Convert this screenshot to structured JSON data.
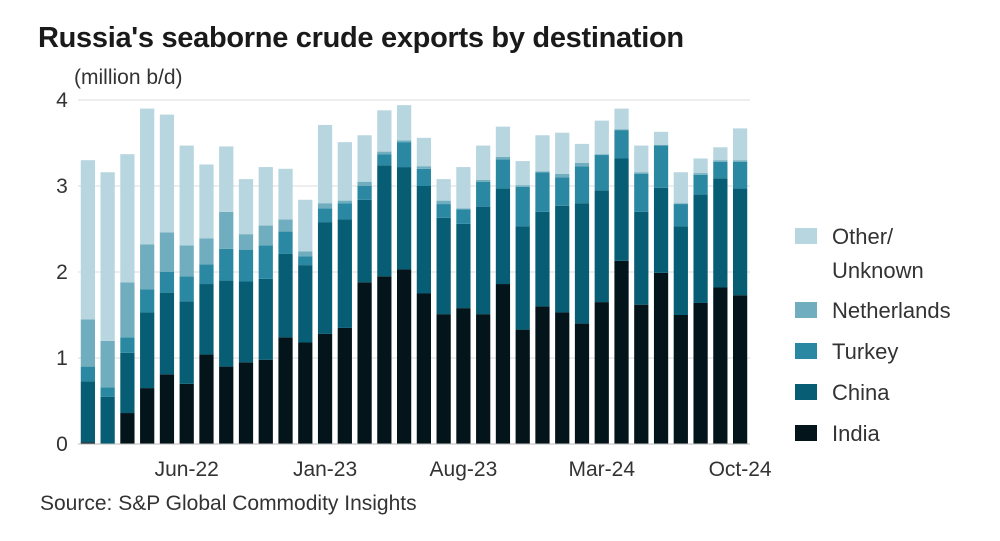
{
  "chart_data": {
    "type": "bar",
    "stacked": true,
    "title": "Russia's seaborne crude exports by destination",
    "ylabel": "(million b/d)",
    "xlabel": "",
    "ylim": [
      0,
      4
    ],
    "yticks": [
      "0",
      "1",
      "2",
      "3",
      "4"
    ],
    "grid": true,
    "legend_placement": "right",
    "source": "Source: S&P Global Commodity Insights",
    "categories": [
      "Jan-22",
      "Feb-22",
      "Mar-22",
      "Apr-22",
      "May-22",
      "Jun-22",
      "Jul-22",
      "Aug-22",
      "Sep-22",
      "Oct-22",
      "Nov-22",
      "Dec-22",
      "Jan-23",
      "Feb-23",
      "Mar-23",
      "Apr-23",
      "May-23",
      "Jun-23",
      "Jul-23",
      "Aug-23",
      "Sep-23",
      "Oct-23",
      "Nov-23",
      "Dec-23",
      "Jan-24",
      "Feb-24",
      "Mar-24",
      "Apr-24",
      "May-24",
      "Jun-24",
      "Jul-24",
      "Aug-24",
      "Sep-24",
      "Oct-24"
    ],
    "xtick_labels": [
      "Jun-22",
      "Jan-23",
      "Aug-23",
      "Mar-24",
      "Oct-24"
    ],
    "series": [
      {
        "name": "India",
        "color": "#03141b",
        "values": [
          0.02,
          0,
          0.36,
          0.65,
          0.81,
          0.7,
          1.04,
          0.9,
          0.95,
          0.98,
          1.24,
          1.18,
          1.28,
          1.35,
          1.88,
          1.95,
          2.03,
          1.75,
          1.51,
          1.58,
          1.51,
          1.86,
          1.33,
          1.6,
          1.53,
          1.4,
          1.65,
          2.13,
          1.62,
          1.99,
          1.5,
          1.64,
          1.82,
          1.73
        ]
      },
      {
        "name": "China",
        "color": "#065d74",
        "values": [
          0.71,
          0.55,
          0.7,
          0.88,
          0.95,
          0.96,
          0.82,
          1.0,
          0.94,
          0.94,
          0.97,
          0.9,
          1.3,
          1.26,
          0.96,
          1.29,
          1.19,
          1.25,
          1.12,
          0.98,
          1.25,
          1.11,
          1.2,
          1.1,
          1.24,
          1.4,
          1.3,
          1.19,
          1.08,
          0.99,
          1.03,
          1.26,
          1.27,
          1.24
        ]
      },
      {
        "name": "Turkey",
        "color": "#2a88a2",
        "values": [
          0.17,
          0.11,
          0.18,
          0.27,
          0.24,
          0.29,
          0.23,
          0.37,
          0.37,
          0.39,
          0.26,
          0.1,
          0.16,
          0.19,
          0.16,
          0.13,
          0.29,
          0.2,
          0.16,
          0.17,
          0.29,
          0.34,
          0.46,
          0.46,
          0.33,
          0.43,
          0.41,
          0.33,
          0.44,
          0.49,
          0.26,
          0.23,
          0.19,
          0.31
        ]
      },
      {
        "name": "Netherlands",
        "color": "#70adbe",
        "values": [
          0.55,
          0.54,
          0.64,
          0.52,
          0.46,
          0.36,
          0.3,
          0.43,
          0.18,
          0.23,
          0.14,
          0.06,
          0.06,
          0.03,
          0.05,
          0.03,
          0.02,
          0.03,
          0.04,
          0.01,
          0.02,
          0.03,
          0.02,
          0.01,
          0.04,
          0.04,
          0.01,
          0.01,
          0.02,
          0.01,
          0.01,
          0.02,
          0.02,
          0.02
        ]
      },
      {
        "name": "Other/ Unknown",
        "color": "#b7d6df",
        "values": [
          1.85,
          1.96,
          1.49,
          1.58,
          1.37,
          1.16,
          0.86,
          0.76,
          0.64,
          0.68,
          0.59,
          0.6,
          0.91,
          0.68,
          0.54,
          0.48,
          0.41,
          0.33,
          0.25,
          0.48,
          0.4,
          0.35,
          0.28,
          0.42,
          0.48,
          0.22,
          0.39,
          0.24,
          0.31,
          0.15,
          0.36,
          0.17,
          0.15,
          0.37
        ]
      }
    ],
    "legend_lines": [
      [
        "Other/",
        "Unknown"
      ],
      [
        "Netherlands"
      ],
      [
        "Turkey"
      ],
      [
        "China"
      ],
      [
        "India"
      ]
    ]
  }
}
